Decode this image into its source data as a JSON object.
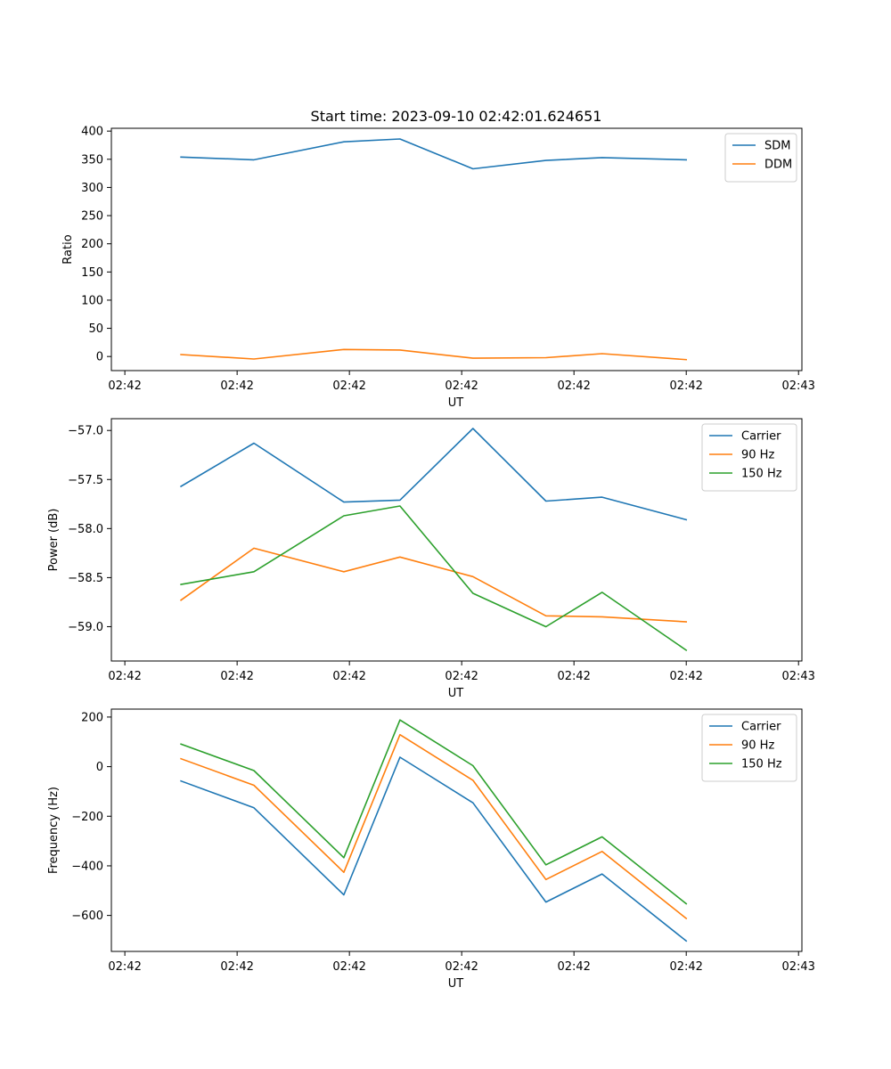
{
  "figure": {
    "title": "Start time: 2023-09-10 02:42:01.624651"
  },
  "chart_data": [
    {
      "type": "line",
      "title": "Start time: 2023-09-10 02:42:01.624651",
      "xlabel": "UT",
      "ylabel": "Ratio",
      "x_tick_labels": [
        "02:42",
        "02:42",
        "02:42",
        "02:42",
        "02:42",
        "02:42",
        "02:43"
      ],
      "y_ticks": [
        0,
        50,
        100,
        150,
        200,
        250,
        300,
        350,
        400
      ],
      "y_tick_labels": [
        "0",
        "50",
        "100",
        "150",
        "200",
        "250",
        "300",
        "350",
        "400"
      ],
      "ylim": [
        -25,
        405
      ],
      "legend": "top-right",
      "series": [
        {
          "name": "SDM",
          "color": "#1f77b4",
          "values": [
            354,
            349,
            381,
            386,
            333,
            348,
            353,
            349
          ]
        },
        {
          "name": "DDM",
          "color": "#ff7f0e",
          "values": [
            3.5,
            -4.5,
            12.5,
            11.5,
            -3,
            -2,
            5,
            -5.5
          ]
        }
      ]
    },
    {
      "type": "line",
      "xlabel": "UT",
      "ylabel": "Power (dB)",
      "x_tick_labels": [
        "02:42",
        "02:42",
        "02:42",
        "02:42",
        "02:42",
        "02:42",
        "02:43"
      ],
      "y_ticks": [
        -59.0,
        -58.5,
        -58.0,
        -57.5,
        -57.0
      ],
      "y_tick_labels": [
        "−59.0",
        "−58.5",
        "−58.0",
        "−57.5",
        "−57.0"
      ],
      "ylim": [
        -59.35,
        -56.88
      ],
      "legend": "top-right",
      "series": [
        {
          "name": "Carrier",
          "color": "#1f77b4",
          "values": [
            -57.57,
            -57.13,
            -57.73,
            -57.71,
            -56.98,
            -57.72,
            -57.68,
            -57.91
          ]
        },
        {
          "name": "90 Hz",
          "color": "#ff7f0e",
          "values": [
            -58.73,
            -58.2,
            -58.44,
            -58.29,
            -58.49,
            -58.89,
            -58.9,
            -58.95
          ]
        },
        {
          "name": "150 Hz",
          "color": "#2ca02c",
          "values": [
            -58.57,
            -58.44,
            -57.87,
            -57.77,
            -58.66,
            -59.0,
            -58.65,
            -59.24
          ]
        }
      ]
    },
    {
      "type": "line",
      "xlabel": "UT",
      "ylabel": "Frequency (Hz)",
      "x_tick_labels": [
        "02:42",
        "02:42",
        "02:42",
        "02:42",
        "02:42",
        "02:42",
        "02:43"
      ],
      "y_ticks": [
        -600,
        -400,
        -200,
        0,
        200
      ],
      "y_tick_labels": [
        "−600",
        "−400",
        "−200",
        "0",
        "200"
      ],
      "ylim": [
        -745,
        232
      ],
      "legend": "top-right",
      "series": [
        {
          "name": "Carrier",
          "color": "#1f77b4",
          "values": [
            -58,
            -166,
            -517,
            38,
            -146,
            -546,
            -433,
            -703
          ]
        },
        {
          "name": "90 Hz",
          "color": "#ff7f0e",
          "values": [
            32,
            -75,
            -426,
            129,
            -55,
            -455,
            -342,
            -612
          ]
        },
        {
          "name": "150 Hz",
          "color": "#2ca02c",
          "values": [
            91,
            -16,
            -367,
            188,
            4,
            -396,
            -283,
            -553
          ]
        }
      ]
    }
  ],
  "x_domain": {
    "point_positions": [
      0.5,
      1.15,
      1.95,
      2.45,
      3.1,
      3.75,
      4.25,
      5.0
    ],
    "tick_positions": [
      0,
      1,
      2,
      3,
      4,
      5,
      6
    ],
    "xlim": [
      -0.12,
      6.03
    ]
  }
}
